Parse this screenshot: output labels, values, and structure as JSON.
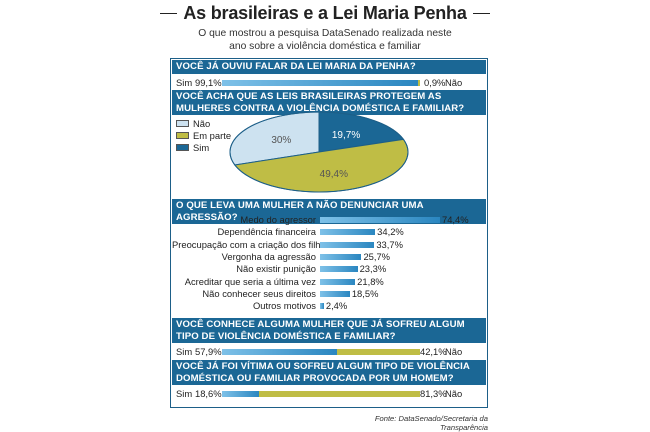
{
  "header": {
    "title": "As brasileiras e a Lei Maria Penha",
    "subtitle_line1": "O que mostrou a pesquisa DataSenado realizada neste",
    "subtitle_line2": "ano sobre a violência doméstica e familiar"
  },
  "source": "Fonte: DataSenado/Secretaria da Transparência",
  "colors": {
    "blue": "#1b6795",
    "sky": "#cde2f0",
    "olive": "#bfbd45",
    "bar": "#2a86c0"
  },
  "q1": {
    "question": "Você já ouviu falar da Lei Maria da Penha?",
    "left_label": "Sim",
    "left_value": "99,1%",
    "left_num": 99.1,
    "right_label": "Não",
    "right_value": "0,9%",
    "right_num": 0.9
  },
  "q2": {
    "question_line1": "Você acha que as leis brasileiras protegem as",
    "question_line2": "mulheres contra a violência doméstica e familiar?",
    "legend": [
      "Não",
      "Em parte",
      "Sim"
    ]
  },
  "q3": {
    "question": "O que leva uma mulher a não denunciar uma agressão?"
  },
  "q4": {
    "question_line1": "Você conhece alguma mulher que já sofreu algum",
    "question_line2": "tipo de violência doméstica e familiar?",
    "left_label": "Sim",
    "left_value": "57,9%",
    "left_num": 57.9,
    "right_label": "Não",
    "right_value": "42,1%",
    "right_num": 42.1
  },
  "q5": {
    "question_line1": "Você já foi vítima ou sofreu algum tipo de violência",
    "question_line2": "doméstica ou familiar provocada por um homem?",
    "left_label": "Sim",
    "left_value": "18,6%",
    "left_num": 18.6,
    "right_label": "Não",
    "right_value": "81,3%",
    "right_num": 81.3
  },
  "chart_data": [
    {
      "type": "pie",
      "title": "Você acha que as leis brasileiras protegem as mulheres contra a violência doméstica e familiar?",
      "slices": [
        {
          "name": "Não",
          "value": 30,
          "label": "30%",
          "color": "#cde2f0"
        },
        {
          "name": "Sim",
          "value": 19.7,
          "label": "19,7%",
          "color": "#1b6795"
        },
        {
          "name": "Em parte",
          "value": 49.4,
          "label": "49,4%",
          "color": "#bfbd45"
        }
      ]
    },
    {
      "type": "bar",
      "title": "O que leva uma mulher a não denunciar uma agressão?",
      "categories": [
        "Medo do agressor",
        "Dependência financeira",
        "Preocupação com a criação dos filhos",
        "Vergonha da agressão",
        "Não existir punição",
        "Acreditar que seria a última vez",
        "Não conhecer seus direitos",
        "Outros motivos"
      ],
      "values": [
        74.4,
        34.2,
        33.7,
        25.7,
        23.3,
        21.8,
        18.5,
        2.4
      ],
      "labels": [
        "74,4%",
        "34,2%",
        "33,7%",
        "25,7%",
        "23,3%",
        "21,8%",
        "18,5%",
        "2,4%"
      ],
      "xlim": [
        0,
        74.4
      ]
    }
  ]
}
